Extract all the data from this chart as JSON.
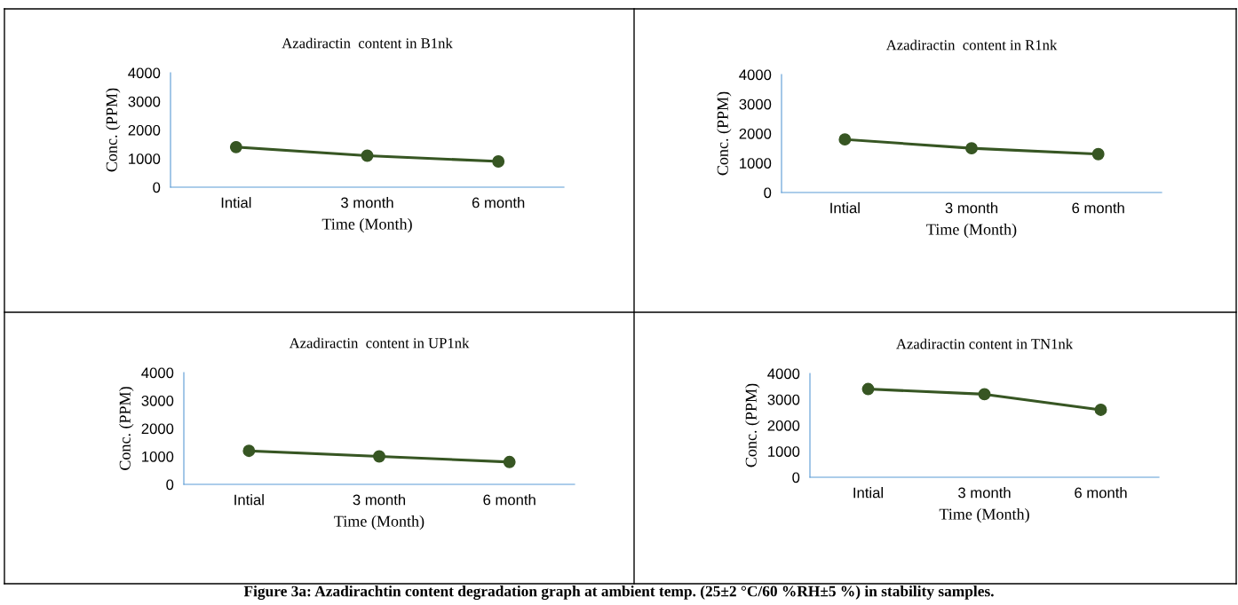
{
  "chart_data": [
    {
      "type": "line",
      "title": "Azadiractin  content in B1nk",
      "xlabel": "Time (Month)",
      "ylabel": "Conc. (PPM)",
      "categories": [
        "Intial",
        "3 month",
        "6 month"
      ],
      "series": [
        {
          "color": "#375623",
          "values": [
            1400,
            1100,
            900
          ]
        }
      ],
      "ylim": [
        0,
        4000
      ],
      "yticks": [
        0,
        1000,
        2000,
        3000,
        4000
      ],
      "grid": false,
      "legend": false,
      "marker": "circle",
      "line_style": "solid",
      "annotations": [
        "Figure 3a: Azadirachtin content degradation graph at ambient temp. (25±2 °C/60 %RH±5 %) in stability samples."
      ]
    },
    {
      "type": "line",
      "title": "Azadiractin  content in R1nk",
      "xlabel": "Time (Month)",
      "ylabel": "Conc. (PPM)",
      "categories": [
        "Intial",
        "3 month",
        "6 month"
      ],
      "series": [
        {
          "color": "#375623",
          "values": [
            1800,
            1500,
            1300
          ]
        }
      ],
      "ylim": [
        0,
        4000
      ],
      "yticks": [
        0,
        1000,
        2000,
        3000,
        4000
      ],
      "grid": false,
      "legend": false,
      "marker": "circle",
      "line_style": "solid"
    },
    {
      "type": "line",
      "title": "Azadiractin  content in UP1nk",
      "xlabel": "Time (Month)",
      "ylabel": "Conc. (PPM)",
      "categories": [
        "Intial",
        "3 month",
        "6 month"
      ],
      "series": [
        {
          "color": "#375623",
          "values": [
            1200,
            1000,
            800
          ]
        }
      ],
      "ylim": [
        0,
        4000
      ],
      "yticks": [
        0,
        1000,
        2000,
        3000,
        4000
      ],
      "grid": false,
      "legend": false,
      "marker": "circle",
      "line_style": "solid"
    },
    {
      "type": "line",
      "title": "Azadiractin content in TN1nk",
      "xlabel": "Time (Month)",
      "ylabel": "Conc. (PPM)",
      "categories": [
        "Intial",
        "3 month",
        "6 month"
      ],
      "series": [
        {
          "color": "#375623",
          "values": [
            3400,
            3200,
            2600
          ]
        }
      ],
      "ylim": [
        0,
        4000
      ],
      "yticks": [
        0,
        1000,
        2000,
        3000,
        4000
      ],
      "grid": false,
      "legend": false,
      "marker": "circle",
      "line_style": "solid"
    }
  ]
}
